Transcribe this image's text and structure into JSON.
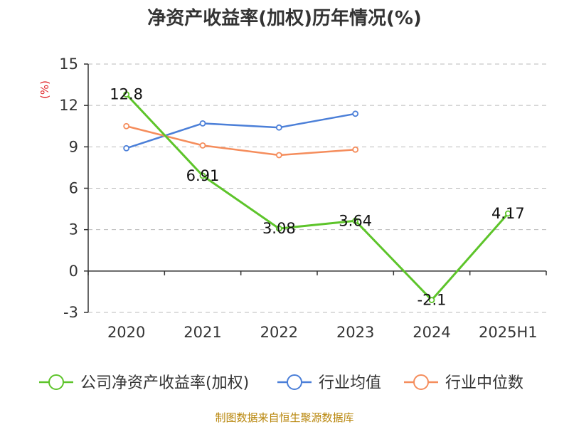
{
  "chart_data": {
    "type": "line",
    "title": "净资产收益率(加权)历年情况(%)",
    "ylabel": "(%)",
    "categories": [
      "2020",
      "2021",
      "2022",
      "2023",
      "2024",
      "2025H1"
    ],
    "ylim": [
      -3,
      15
    ],
    "yticks": [
      -3,
      0,
      3,
      6,
      9,
      12,
      15
    ],
    "grid": true,
    "legend_position": "bottom",
    "series": [
      {
        "name": "公司净资产收益率(加权)",
        "color": "#5dc42a",
        "values": [
          12.8,
          6.91,
          3.08,
          3.64,
          -2.1,
          4.17
        ],
        "labels": [
          "12.8",
          "6.91",
          "3.08",
          "3.64",
          "-2.1",
          "4.17"
        ]
      },
      {
        "name": "行业均值",
        "color": "#4b7fd8",
        "values": [
          8.9,
          10.7,
          10.4,
          11.4,
          null,
          null
        ]
      },
      {
        "name": "行业中位数",
        "color": "#f58d5c",
        "values": [
          10.5,
          9.1,
          8.4,
          8.8,
          null,
          null
        ]
      }
    ]
  },
  "footer": "制图数据来自恒生聚源数据库"
}
